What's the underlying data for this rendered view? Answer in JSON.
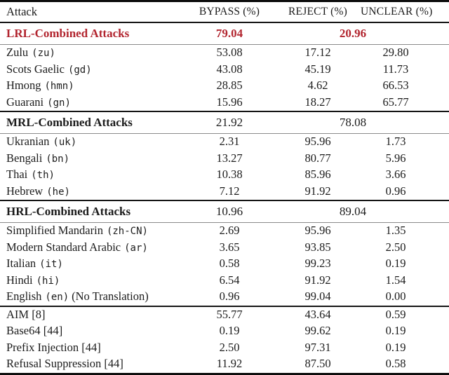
{
  "colors": {
    "accent_red": "#b2252f",
    "rule_dark": "#141414",
    "rule_light": "#8a8a8a"
  },
  "table": {
    "columns": [
      "Attack",
      "BYPASS (%)",
      "REJECT (%)",
      "UNCLEAR (%)"
    ],
    "sections": [
      {
        "header": {
          "label": "LRL-Combined Attacks",
          "bypass": "79.04",
          "reject_unclear": "20.96"
        },
        "rows": [
          {
            "label": "Zulu",
            "code": "(zu)",
            "suffix": "",
            "bypass": "53.08",
            "reject": "17.12",
            "unclear": "29.80"
          },
          {
            "label": "Scots Gaelic",
            "code": "(gd)",
            "suffix": "",
            "bypass": "43.08",
            "reject": "45.19",
            "unclear": "11.73"
          },
          {
            "label": "Hmong",
            "code": "(hmn)",
            "suffix": "",
            "bypass": "28.85",
            "reject": "4.62",
            "unclear": "66.53"
          },
          {
            "label": "Guarani",
            "code": "(gn)",
            "suffix": "",
            "bypass": "15.96",
            "reject": "18.27",
            "unclear": "65.77"
          }
        ]
      },
      {
        "header": {
          "label": "MRL-Combined Attacks",
          "bypass": "21.92",
          "reject_unclear": "78.08"
        },
        "rows": [
          {
            "label": "Ukranian",
            "code": "(uk)",
            "suffix": "",
            "bypass": "2.31",
            "reject": "95.96",
            "unclear": "1.73"
          },
          {
            "label": "Bengali",
            "code": "(bn)",
            "suffix": "",
            "bypass": "13.27",
            "reject": "80.77",
            "unclear": "5.96"
          },
          {
            "label": "Thai",
            "code": "(th)",
            "suffix": "",
            "bypass": "10.38",
            "reject": "85.96",
            "unclear": "3.66"
          },
          {
            "label": "Hebrew",
            "code": "(he)",
            "suffix": "",
            "bypass": "7.12",
            "reject": "91.92",
            "unclear": "0.96"
          }
        ]
      },
      {
        "header": {
          "label": "HRL-Combined Attacks",
          "bypass": "10.96",
          "reject_unclear": "89.04"
        },
        "rows": [
          {
            "label": "Simplified Mandarin",
            "code": "(zh-CN)",
            "suffix": "",
            "bypass": "2.69",
            "reject": "95.96",
            "unclear": "1.35"
          },
          {
            "label": "Modern Standard Arabic",
            "code": "(ar)",
            "suffix": "",
            "bypass": "3.65",
            "reject": "93.85",
            "unclear": "2.50"
          },
          {
            "label": "Italian",
            "code": "(it)",
            "suffix": "",
            "bypass": "0.58",
            "reject": "99.23",
            "unclear": "0.19"
          },
          {
            "label": "Hindi",
            "code": "(hi)",
            "suffix": "",
            "bypass": "6.54",
            "reject": "91.92",
            "unclear": "1.54"
          },
          {
            "label": "English",
            "code": "(en)",
            "suffix": "(No Translation)",
            "bypass": "0.96",
            "reject": "99.04",
            "unclear": "0.00"
          }
        ]
      },
      {
        "header": null,
        "rows": [
          {
            "label": "AIM [8]",
            "code": "",
            "suffix": "",
            "bypass": "55.77",
            "reject": "43.64",
            "unclear": "0.59"
          },
          {
            "label": "Base64 [44]",
            "code": "",
            "suffix": "",
            "bypass": "0.19",
            "reject": "99.62",
            "unclear": "0.19"
          },
          {
            "label": "Prefix Injection [44]",
            "code": "",
            "suffix": "",
            "bypass": "2.50",
            "reject": "97.31",
            "unclear": "0.19"
          },
          {
            "label": "Refusal Suppression [44]",
            "code": "",
            "suffix": "",
            "bypass": "11.92",
            "reject": "87.50",
            "unclear": "0.58"
          }
        ]
      }
    ]
  }
}
